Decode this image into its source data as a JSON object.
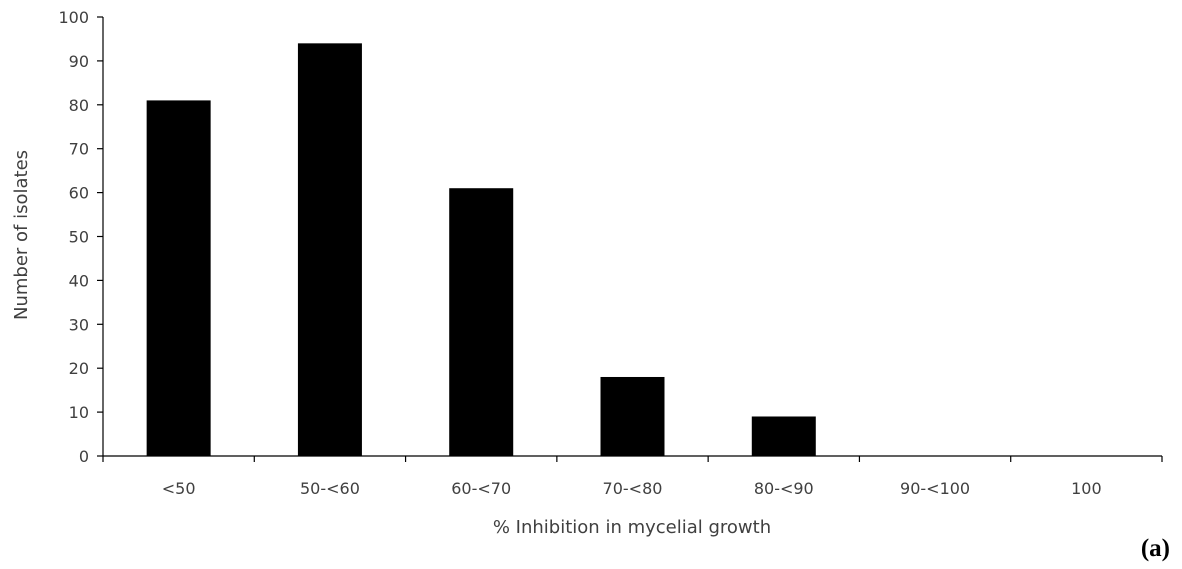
{
  "chart_data": {
    "type": "bar",
    "title": "",
    "xlabel": "% Inhibition in mycelial growth",
    "ylabel": "Number of isolates",
    "categories": [
      "<50",
      "50-<60",
      "60-<70",
      "70-<80",
      "80-<90",
      "90-<100",
      "100"
    ],
    "values": [
      81,
      94,
      61,
      18,
      9,
      0,
      0
    ],
    "ylim": [
      0,
      100
    ],
    "yticks": [
      0,
      10,
      20,
      30,
      40,
      50,
      60,
      70,
      80,
      90,
      100
    ],
    "grid": false,
    "legend": "none",
    "bar_color": "#000000",
    "axis_color": "#000000",
    "text_color": "#404040"
  },
  "panel_label": "(a)"
}
